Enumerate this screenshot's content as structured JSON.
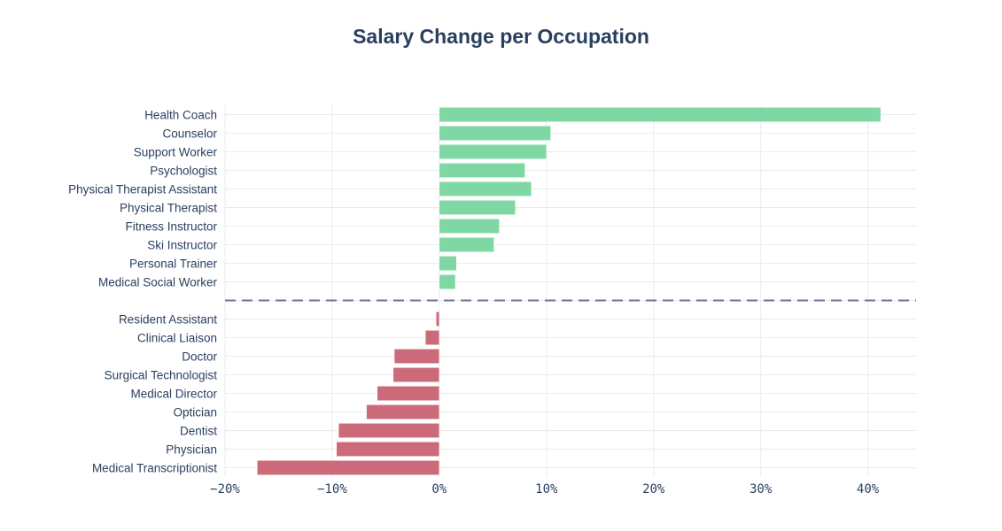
{
  "chart_data": {
    "type": "bar",
    "orientation": "horizontal",
    "title": "Salary Change per Occupation",
    "xlabel": "",
    "ylabel": "",
    "x_unit": "%",
    "xlim": [
      -20,
      44.5
    ],
    "x_ticks": [
      -20,
      -10,
      0,
      10,
      20,
      30,
      40
    ],
    "x_tick_labels": [
      "−20%",
      "−10%",
      "0%",
      "10%",
      "20%",
      "30%",
      "40%"
    ],
    "grid": true,
    "colors": {
      "positive": "#7fd8a4",
      "negative": "#cc6a7a",
      "divider": "#6b7399",
      "grid": "#ebebeb",
      "text": "#2a3f5f"
    },
    "categories": [
      "Medical Transcriptionist",
      "Physician",
      "Dentist",
      "Optician",
      "Medical Director",
      "Surgical Technologist",
      "Doctor",
      "Clinical Liaison",
      "Resident Assistant",
      "",
      "Medical Social Worker",
      "Personal Trainer",
      "Ski Instructor",
      "Fitness Instructor",
      "Physical Therapist",
      "Physical Therapist Assistant",
      "Psychologist",
      "Support Worker",
      "Counselor",
      "Health Coach"
    ],
    "values": [
      -17.0,
      -9.6,
      -9.4,
      -6.8,
      -5.8,
      -4.3,
      -4.2,
      -1.3,
      -0.3,
      null,
      1.5,
      1.6,
      5.1,
      5.6,
      7.1,
      8.6,
      8.0,
      10.0,
      10.4,
      41.2
    ],
    "divider": {
      "style": "dashed",
      "position_category_index": 9
    }
  }
}
